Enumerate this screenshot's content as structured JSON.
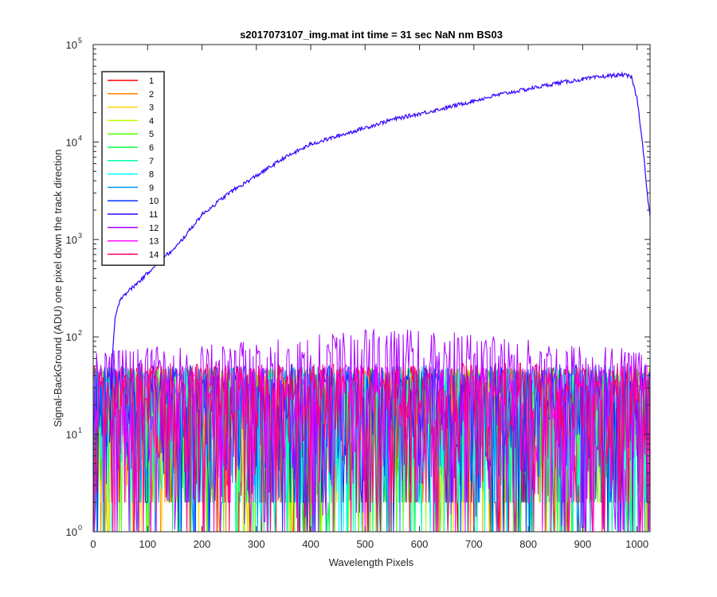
{
  "chart_data": {
    "type": "line",
    "title": "s2017073107_img.mat int time = 31 sec  NaN nm BS03",
    "xlabel": "Wavelength Pixels",
    "ylabel": "Signal-BackGround (ADU) one pixel down the track direction",
    "xlim": [
      0,
      1024
    ],
    "ylim": [
      1,
      100000
    ],
    "yscale": "log",
    "xticks": [
      0,
      100,
      200,
      300,
      400,
      500,
      600,
      700,
      800,
      900,
      1000
    ],
    "yticks": [
      {
        "base": "10",
        "exp": "0",
        "value": 1
      },
      {
        "base": "10",
        "exp": "1",
        "value": 10
      },
      {
        "base": "10",
        "exp": "2",
        "value": 100
      },
      {
        "base": "10",
        "exp": "3",
        "value": 1000
      },
      {
        "base": "10",
        "exp": "4",
        "value": 10000
      },
      {
        "base": "10",
        "exp": "5",
        "value": 100000
      }
    ],
    "legend_position": "top-left",
    "grid": false,
    "series": [
      {
        "name": "1",
        "color": "#ff0000",
        "noise_level": 25
      },
      {
        "name": "2",
        "color": "#ff7f00",
        "noise_level": 25
      },
      {
        "name": "3",
        "color": "#ffd700",
        "noise_level": 24
      },
      {
        "name": "4",
        "color": "#bfff00",
        "noise_level": 24
      },
      {
        "name": "5",
        "color": "#55ff00",
        "noise_level": 24
      },
      {
        "name": "6",
        "color": "#00ff40",
        "noise_level": 24
      },
      {
        "name": "7",
        "color": "#00ffaa",
        "noise_level": 24
      },
      {
        "name": "8",
        "color": "#00ffff",
        "noise_level": 25
      },
      {
        "name": "9",
        "color": "#0099ff",
        "noise_level": 25
      },
      {
        "name": "10",
        "color": "#0033ff",
        "noise_level": 27
      },
      {
        "name": "11",
        "color": "#3300ff",
        "x": [
          30,
          35,
          40,
          50,
          60,
          80,
          100,
          120,
          150,
          200,
          250,
          300,
          350,
          400,
          450,
          500,
          550,
          600,
          650,
          700,
          750,
          800,
          850,
          900,
          950,
          975,
          990,
          1000,
          1010,
          1020,
          1024
        ],
        "y": [
          8,
          60,
          150,
          250,
          280,
          350,
          450,
          600,
          800,
          1800,
          3000,
          4500,
          6800,
          9500,
          11500,
          14000,
          17000,
          19500,
          22500,
          26500,
          31000,
          35000,
          40000,
          44000,
          48000,
          49000,
          46000,
          28000,
          10000,
          2500,
          1700
        ]
      },
      {
        "name": "12",
        "color": "#aa00ff",
        "noise_level": 38
      },
      {
        "name": "13",
        "color": "#ff00ff",
        "noise_level": 26
      },
      {
        "name": "14",
        "color": "#ff0066",
        "noise_level": 27
      }
    ]
  }
}
